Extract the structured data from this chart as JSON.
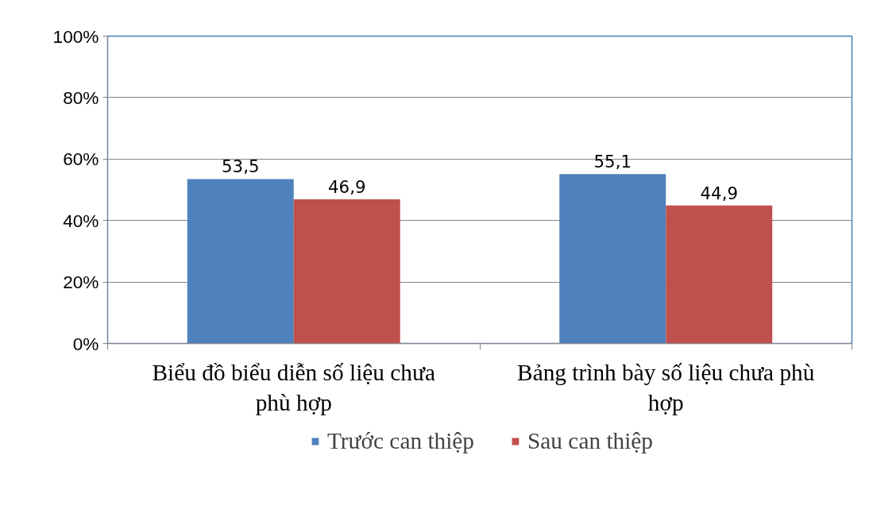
{
  "chart_data": {
    "type": "bar",
    "categories": [
      "Biểu đồ biểu diễn số liệu chưa phù hợp",
      "Bảng trình bày số liệu chưa phù hợp"
    ],
    "series": [
      {
        "name": "Trước can thiệp",
        "color": "#4f81bd",
        "values": [
          53.5,
          55.1
        ],
        "value_labels": [
          "53,5",
          "55,1"
        ]
      },
      {
        "name": "Sau can thiệp",
        "color": "#c0504d",
        "values": [
          46.9,
          44.9
        ],
        "value_labels": [
          "46,9",
          "44,9"
        ]
      }
    ],
    "ylim": [
      0,
      100
    ],
    "yticks": [
      {
        "value": 0,
        "label": "0%"
      },
      {
        "value": 20,
        "label": "20%"
      },
      {
        "value": 40,
        "label": "40%"
      },
      {
        "value": 60,
        "label": "60%"
      },
      {
        "value": 80,
        "label": "80%"
      },
      {
        "value": 100,
        "label": "100%"
      }
    ],
    "grid": "y",
    "legend": "bottom"
  }
}
